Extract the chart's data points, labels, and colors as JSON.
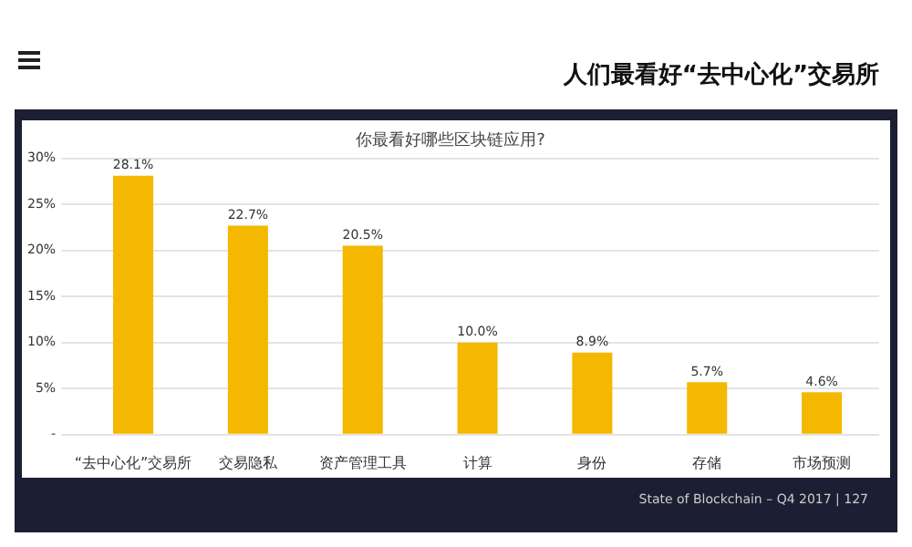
{
  "chart_data": {
    "type": "bar",
    "title": "人们最看好“去中心化”交易所",
    "subtitle": "你最看好哪些区块链应用?",
    "categories": [
      "“去中心化”交易所",
      "交易隐私",
      "资产管理工具",
      "计算",
      "身份",
      "存储",
      "市场预测"
    ],
    "values": [
      28.1,
      22.7,
      20.5,
      10.0,
      8.9,
      5.7,
      4.6
    ],
    "value_labels": [
      "28.1%",
      "22.7%",
      "20.5%",
      "10.0%",
      "8.9%",
      "5.7%",
      "4.6%"
    ],
    "color": "#f5b800",
    "ylim": [
      0,
      30
    ],
    "yticks": [
      {
        "value": 0,
        "label": "-"
      },
      {
        "value": 5,
        "label": "5%"
      },
      {
        "value": 10,
        "label": "10%"
      },
      {
        "value": 15,
        "label": "15%"
      },
      {
        "value": 20,
        "label": "20%"
      },
      {
        "value": 25,
        "label": "25%"
      },
      {
        "value": 30,
        "label": "30%"
      }
    ],
    "grid": "y",
    "legend": false,
    "annotations": [
      "State of Blockchain – Q4 2017  |  127"
    ]
  }
}
